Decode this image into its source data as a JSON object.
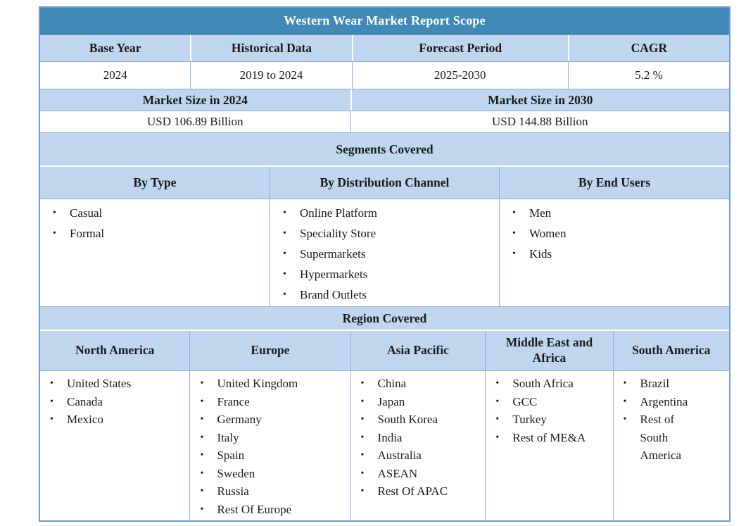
{
  "title": "Western Wear Market Report Scope",
  "overview": {
    "headers": [
      "Base Year",
      "Historical Data",
      "Forecast Period",
      "CAGR"
    ],
    "values": [
      "2024",
      "2019 to 2024",
      "2025-2030",
      "5.2 %"
    ]
  },
  "market_size": {
    "headers": [
      "Market Size in 2024",
      "Market Size in 2030"
    ],
    "values": [
      "USD 106.89 Billion",
      "USD 144.88 Billion"
    ]
  },
  "segments": {
    "section_title": "Segments Covered",
    "columns": [
      {
        "label": "By Type",
        "items": [
          "Casual",
          "Formal"
        ]
      },
      {
        "label": "By Distribution Channel",
        "items": [
          "Online Platform",
          "Speciality Store",
          "Supermarkets",
          "Hypermarkets",
          "Brand Outlets"
        ]
      },
      {
        "label": "By End Users",
        "items": [
          "Men",
          "Women",
          "Kids"
        ]
      }
    ]
  },
  "regions": {
    "section_title": "Region Covered",
    "columns": [
      {
        "label": "North America",
        "items": [
          "United States",
          "Canada",
          "Mexico"
        ]
      },
      {
        "label": "Europe",
        "items": [
          "United Kingdom",
          "France",
          "Germany",
          "Italy",
          "Spain",
          "Sweden",
          "Russia",
          "Rest Of Europe"
        ]
      },
      {
        "label": "Asia Pacific",
        "items": [
          "China",
          "Japan",
          "South Korea",
          "India",
          "Australia",
          "ASEAN",
          "Rest Of APAC"
        ]
      },
      {
        "label": "Middle East and Africa",
        "items": [
          "South Africa",
          "GCC",
          "Turkey",
          "Rest of ME&A"
        ]
      },
      {
        "label": "South America",
        "items": [
          "Brazil",
          "Argentina",
          "Rest of South America"
        ]
      }
    ]
  },
  "bullet_glyph": "•",
  "colors": {
    "title_bg": "#4189b7",
    "header_bg": "#bfd6ee",
    "border": "#8fafd9",
    "title_text": "#ffffff",
    "body_text": "#1a1a1a"
  }
}
